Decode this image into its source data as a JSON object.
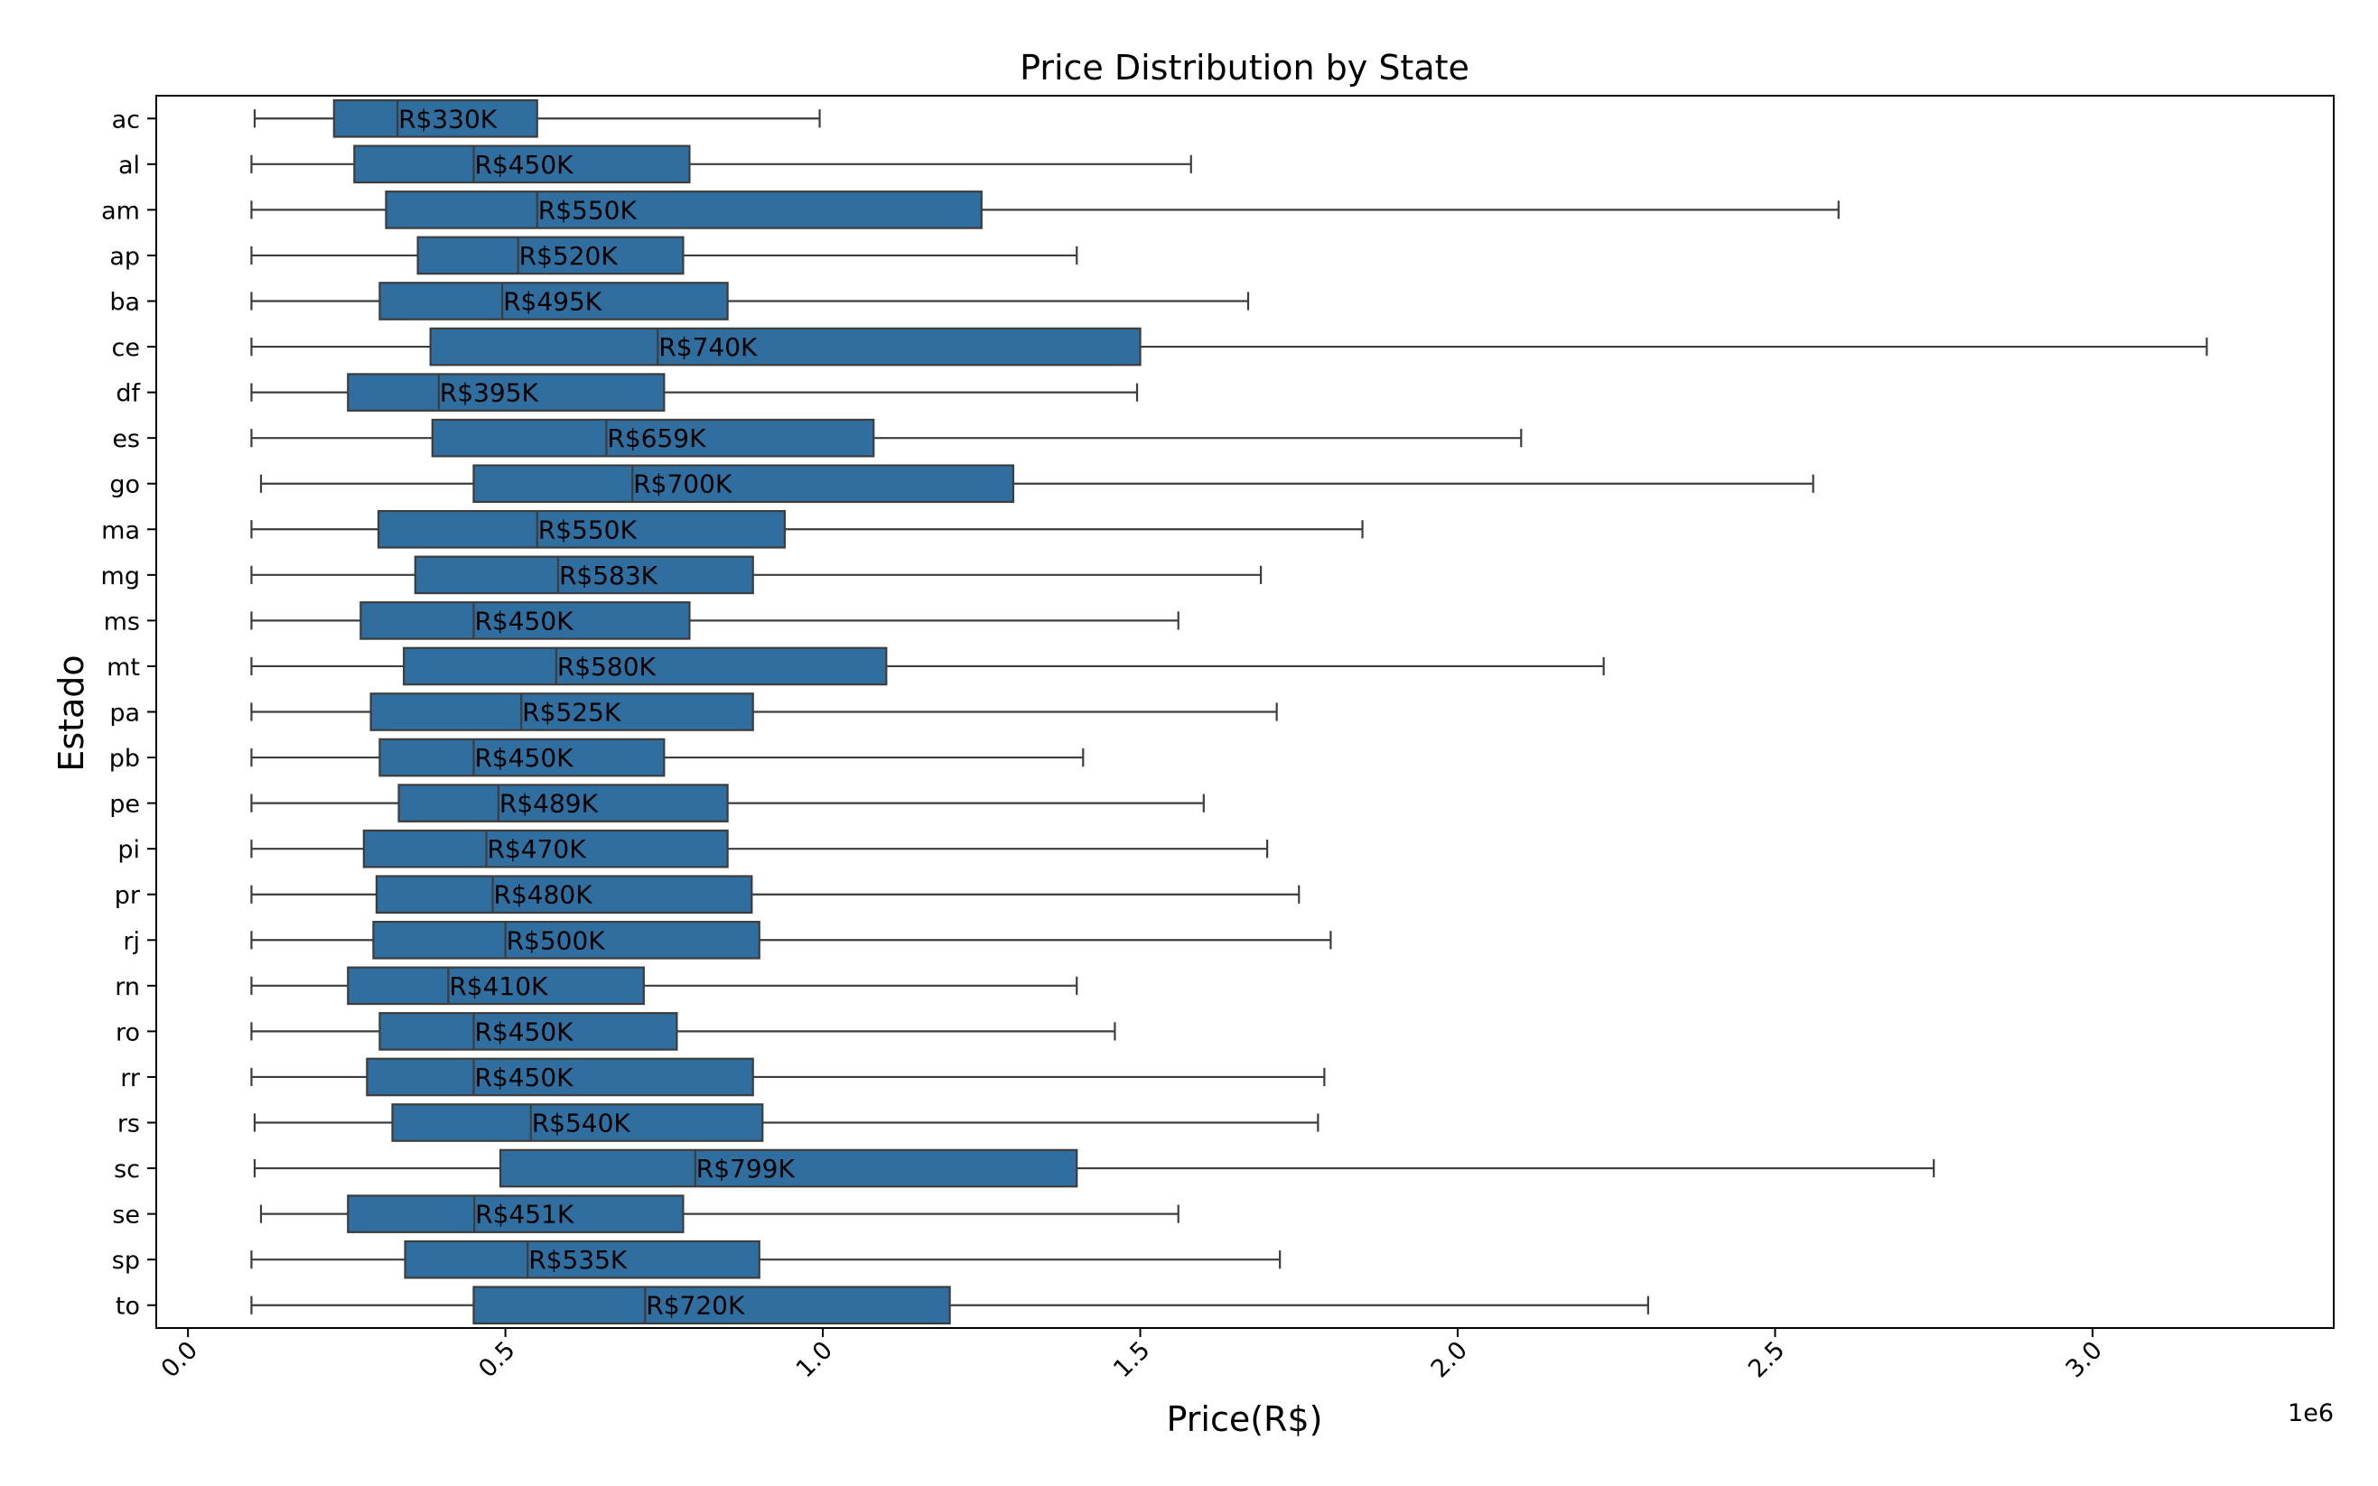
{
  "chart_data": {
    "type": "boxplot",
    "orientation": "horizontal",
    "title": "Price Distribution by State",
    "xlabel": "Price(R$)",
    "ylabel": "Estado",
    "x_offset_label": "1e6",
    "x_scale": 1000000,
    "xlim": [
      -0.05,
      3.38
    ],
    "x_ticks": [
      {
        "value": 0.0,
        "label": "0.0"
      },
      {
        "value": 0.5,
        "label": "0.5"
      },
      {
        "value": 1.0,
        "label": "1.0"
      },
      {
        "value": 1.5,
        "label": "1.5"
      },
      {
        "value": 2.0,
        "label": "2.0"
      },
      {
        "value": 2.5,
        "label": "2.5"
      },
      {
        "value": 3.0,
        "label": "3.0"
      }
    ],
    "grid": false,
    "box_color": "#2f6e9e",
    "box_edge_color": "#3d3d3d",
    "categories": [
      "ac",
      "al",
      "am",
      "ap",
      "ba",
      "ce",
      "df",
      "es",
      "go",
      "ma",
      "mg",
      "ms",
      "mt",
      "pa",
      "pb",
      "pe",
      "pi",
      "pr",
      "rj",
      "rn",
      "ro",
      "rr",
      "rs",
      "sc",
      "se",
      "sp",
      "to"
    ],
    "boxes": [
      {
        "state": "ac",
        "whisker_low": 0.105,
        "q1": 0.23,
        "median": 0.33,
        "q3": 0.55,
        "whisker_high": 0.995,
        "median_label": "R$330K"
      },
      {
        "state": "al",
        "whisker_low": 0.1,
        "q1": 0.262,
        "median": 0.45,
        "q3": 0.79,
        "whisker_high": 1.58,
        "median_label": "R$450K"
      },
      {
        "state": "am",
        "whisker_low": 0.1,
        "q1": 0.312,
        "median": 0.55,
        "q3": 1.25,
        "whisker_high": 2.6,
        "median_label": "R$550K"
      },
      {
        "state": "ap",
        "whisker_low": 0.1,
        "q1": 0.362,
        "median": 0.52,
        "q3": 0.78,
        "whisker_high": 1.4,
        "median_label": "R$520K"
      },
      {
        "state": "ba",
        "whisker_low": 0.1,
        "q1": 0.302,
        "median": 0.495,
        "q3": 0.85,
        "whisker_high": 1.67,
        "median_label": "R$495K"
      },
      {
        "state": "ce",
        "whisker_low": 0.1,
        "q1": 0.382,
        "median": 0.74,
        "q3": 1.5,
        "whisker_high": 3.18,
        "median_label": "R$740K"
      },
      {
        "state": "df",
        "whisker_low": 0.1,
        "q1": 0.252,
        "median": 0.395,
        "q3": 0.75,
        "whisker_high": 1.495,
        "median_label": "R$395K"
      },
      {
        "state": "es",
        "whisker_low": 0.1,
        "q1": 0.385,
        "median": 0.659,
        "q3": 1.08,
        "whisker_high": 2.1,
        "median_label": "R$659K"
      },
      {
        "state": "go",
        "whisker_low": 0.115,
        "q1": 0.45,
        "median": 0.7,
        "q3": 1.3,
        "whisker_high": 2.56,
        "median_label": "R$700K"
      },
      {
        "state": "ma",
        "whisker_low": 0.1,
        "q1": 0.3,
        "median": 0.55,
        "q3": 0.94,
        "whisker_high": 1.85,
        "median_label": "R$550K"
      },
      {
        "state": "mg",
        "whisker_low": 0.1,
        "q1": 0.358,
        "median": 0.583,
        "q3": 0.89,
        "whisker_high": 1.69,
        "median_label": "R$583K"
      },
      {
        "state": "ms",
        "whisker_low": 0.1,
        "q1": 0.272,
        "median": 0.45,
        "q3": 0.79,
        "whisker_high": 1.56,
        "median_label": "R$450K"
      },
      {
        "state": "mt",
        "whisker_low": 0.1,
        "q1": 0.34,
        "median": 0.58,
        "q3": 1.1,
        "whisker_high": 2.23,
        "median_label": "R$580K"
      },
      {
        "state": "pa",
        "whisker_low": 0.1,
        "q1": 0.288,
        "median": 0.525,
        "q3": 0.89,
        "whisker_high": 1.715,
        "median_label": "R$525K"
      },
      {
        "state": "pb",
        "whisker_low": 0.1,
        "q1": 0.302,
        "median": 0.45,
        "q3": 0.75,
        "whisker_high": 1.41,
        "median_label": "R$450K"
      },
      {
        "state": "pe",
        "whisker_low": 0.1,
        "q1": 0.332,
        "median": 0.489,
        "q3": 0.85,
        "whisker_high": 1.6,
        "median_label": "R$489K"
      },
      {
        "state": "pi",
        "whisker_low": 0.1,
        "q1": 0.277,
        "median": 0.47,
        "q3": 0.85,
        "whisker_high": 1.7,
        "median_label": "R$470K"
      },
      {
        "state": "pr",
        "whisker_low": 0.1,
        "q1": 0.297,
        "median": 0.48,
        "q3": 0.888,
        "whisker_high": 1.75,
        "median_label": "R$480K"
      },
      {
        "state": "rj",
        "whisker_low": 0.1,
        "q1": 0.292,
        "median": 0.5,
        "q3": 0.9,
        "whisker_high": 1.8,
        "median_label": "R$500K"
      },
      {
        "state": "rn",
        "whisker_low": 0.1,
        "q1": 0.252,
        "median": 0.41,
        "q3": 0.718,
        "whisker_high": 1.4,
        "median_label": "R$410K"
      },
      {
        "state": "ro",
        "whisker_low": 0.1,
        "q1": 0.302,
        "median": 0.45,
        "q3": 0.77,
        "whisker_high": 1.46,
        "median_label": "R$450K"
      },
      {
        "state": "rr",
        "whisker_low": 0.1,
        "q1": 0.282,
        "median": 0.45,
        "q3": 0.89,
        "whisker_high": 1.79,
        "median_label": "R$450K"
      },
      {
        "state": "rs",
        "whisker_low": 0.105,
        "q1": 0.322,
        "median": 0.54,
        "q3": 0.905,
        "whisker_high": 1.78,
        "median_label": "R$540K"
      },
      {
        "state": "sc",
        "whisker_low": 0.105,
        "q1": 0.492,
        "median": 0.799,
        "q3": 1.4,
        "whisker_high": 2.75,
        "median_label": "R$799K"
      },
      {
        "state": "se",
        "whisker_low": 0.115,
        "q1": 0.252,
        "median": 0.451,
        "q3": 0.78,
        "whisker_high": 1.56,
        "median_label": "R$451K"
      },
      {
        "state": "sp",
        "whisker_low": 0.1,
        "q1": 0.342,
        "median": 0.535,
        "q3": 0.9,
        "whisker_high": 1.72,
        "median_label": "R$535K"
      },
      {
        "state": "to",
        "whisker_low": 0.1,
        "q1": 0.45,
        "median": 0.72,
        "q3": 1.2,
        "whisker_high": 2.3,
        "median_label": "R$720K"
      }
    ]
  }
}
